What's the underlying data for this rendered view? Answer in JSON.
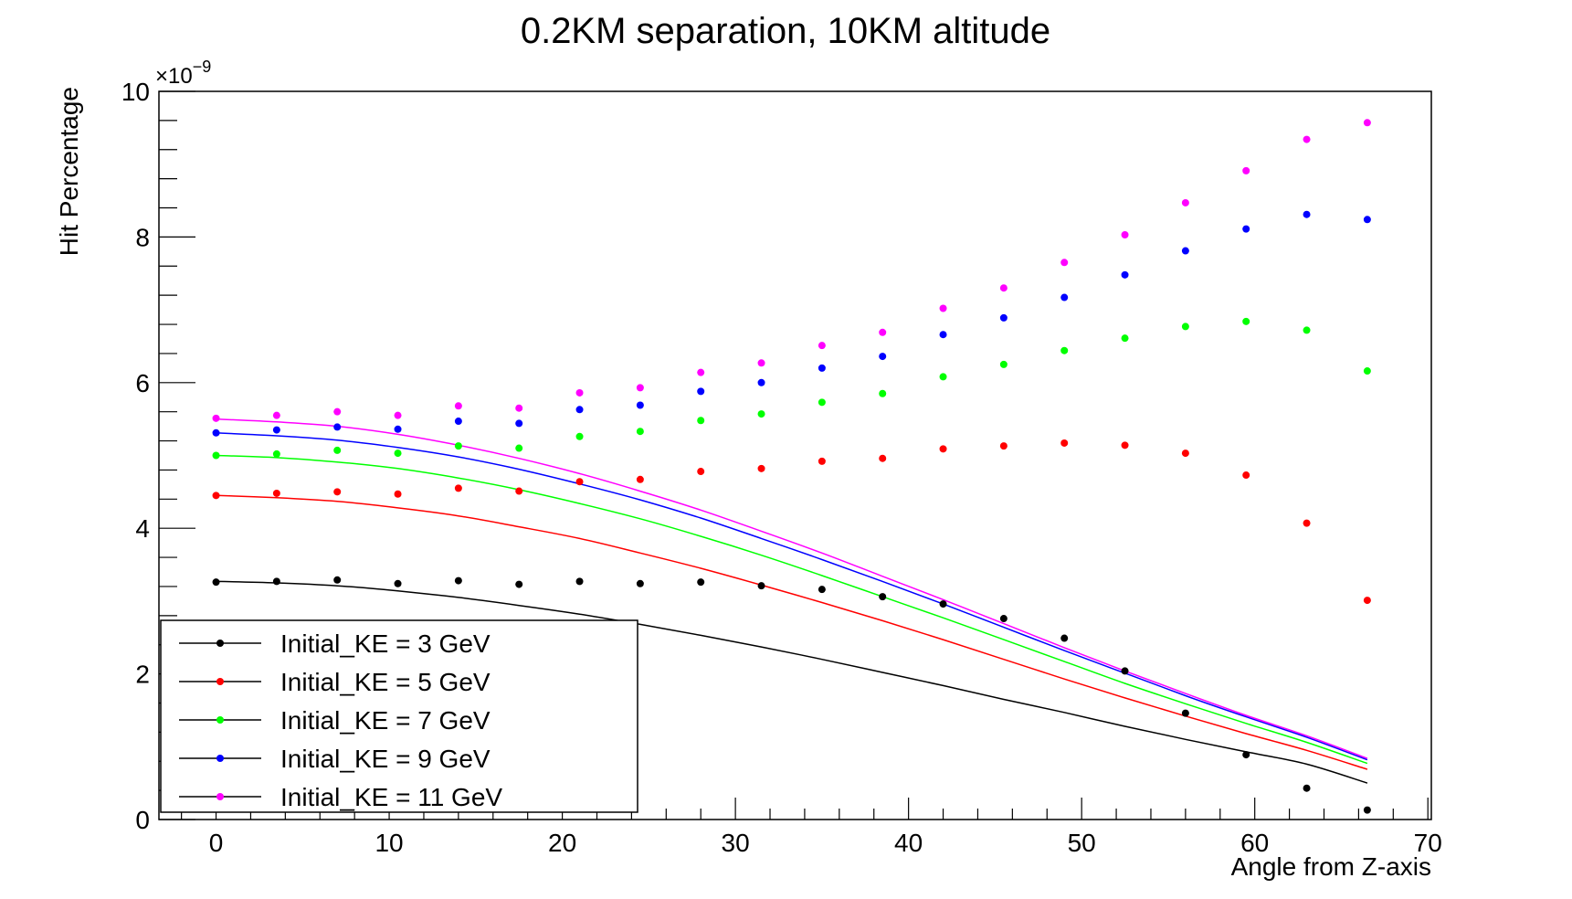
{
  "chart_data": {
    "type": "scatter",
    "title": "0.2KM separation, 10KM altitude",
    "xlabel": "Angle from Z-axis",
    "ylabel": "Hit Percentage",
    "y_exponent_label": "×10",
    "y_exponent_power": "−9",
    "xlim": [
      -3.3,
      70.2
    ],
    "ylim": [
      0,
      10
    ],
    "x_ticks": [
      0,
      10,
      20,
      30,
      40,
      50,
      60,
      70
    ],
    "x_tick_labels": [
      "0",
      "10",
      "20",
      "30",
      "40",
      "50",
      "60",
      "70"
    ],
    "y_ticks": [
      0,
      2,
      4,
      6,
      8,
      10
    ],
    "y_tick_labels": [
      "0",
      "2",
      "4",
      "6",
      "8",
      "10"
    ],
    "grid": false,
    "legend_position": "bottom-left",
    "x": [
      0,
      3.5,
      7,
      10.5,
      14,
      17.5,
      21,
      24.5,
      28,
      31.5,
      35,
      38.5,
      42,
      45.5,
      49,
      52.5,
      56,
      59.5,
      63,
      66.5
    ],
    "series": [
      {
        "name": "Initial_KE = 3 GeV",
        "color": "#000000",
        "points": [
          3.26,
          3.27,
          3.29,
          3.24,
          3.28,
          3.23,
          3.27,
          3.24,
          3.26,
          3.21,
          3.16,
          3.06,
          2.96,
          2.76,
          2.49,
          2.04,
          1.46,
          0.89,
          0.43,
          0.13
        ],
        "curve": [
          3.27,
          3.25,
          3.21,
          3.14,
          3.05,
          2.94,
          2.82,
          2.68,
          2.53,
          2.37,
          2.2,
          2.02,
          1.84,
          1.65,
          1.47,
          1.28,
          1.1,
          0.93,
          0.76,
          0.5
        ]
      },
      {
        "name": "Initial_KE = 5 GeV",
        "color": "#ff0000",
        "points": [
          4.45,
          4.48,
          4.5,
          4.47,
          4.55,
          4.51,
          4.64,
          4.67,
          4.78,
          4.82,
          4.92,
          4.96,
          5.09,
          5.13,
          5.17,
          5.14,
          5.03,
          4.73,
          4.07,
          3.01
        ],
        "curve": [
          4.45,
          4.42,
          4.37,
          4.28,
          4.17,
          4.02,
          3.86,
          3.66,
          3.45,
          3.22,
          2.98,
          2.73,
          2.47,
          2.2,
          1.93,
          1.67,
          1.42,
          1.18,
          0.95,
          0.69
        ]
      },
      {
        "name": "Initial_KE = 7 GeV",
        "color": "#00ff00",
        "points": [
          5.0,
          5.02,
          5.07,
          5.03,
          5.13,
          5.1,
          5.26,
          5.33,
          5.48,
          5.57,
          5.73,
          5.85,
          6.08,
          6.25,
          6.44,
          6.61,
          6.77,
          6.84,
          6.72,
          6.16
        ],
        "curve": [
          5.0,
          4.97,
          4.91,
          4.82,
          4.69,
          4.53,
          4.34,
          4.13,
          3.89,
          3.63,
          3.35,
          3.06,
          2.77,
          2.47,
          2.17,
          1.87,
          1.59,
          1.32,
          1.06,
          0.77
        ]
      },
      {
        "name": "Initial_KE = 9 GeV",
        "color": "#0000ff",
        "points": [
          5.31,
          5.35,
          5.39,
          5.36,
          5.47,
          5.44,
          5.63,
          5.69,
          5.88,
          6.0,
          6.2,
          6.36,
          6.66,
          6.89,
          7.17,
          7.48,
          7.81,
          8.11,
          8.31,
          8.24
        ],
        "curve": [
          5.31,
          5.27,
          5.21,
          5.11,
          4.98,
          4.81,
          4.61,
          4.39,
          4.14,
          3.86,
          3.57,
          3.27,
          2.96,
          2.64,
          2.32,
          2.01,
          1.7,
          1.41,
          1.13,
          0.82
        ]
      },
      {
        "name": "Initial_KE = 11 GeV",
        "color": "#ff00ff",
        "points": [
          5.51,
          5.55,
          5.6,
          5.55,
          5.68,
          5.65,
          5.86,
          5.93,
          6.14,
          6.27,
          6.51,
          6.69,
          7.02,
          7.3,
          7.65,
          8.03,
          8.47,
          8.91,
          9.34,
          9.57
        ],
        "curve": [
          5.5,
          5.46,
          5.4,
          5.29,
          5.14,
          4.96,
          4.75,
          4.51,
          4.25,
          3.96,
          3.66,
          3.34,
          3.02,
          2.69,
          2.36,
          2.04,
          1.73,
          1.43,
          1.15,
          0.84
        ]
      }
    ]
  }
}
